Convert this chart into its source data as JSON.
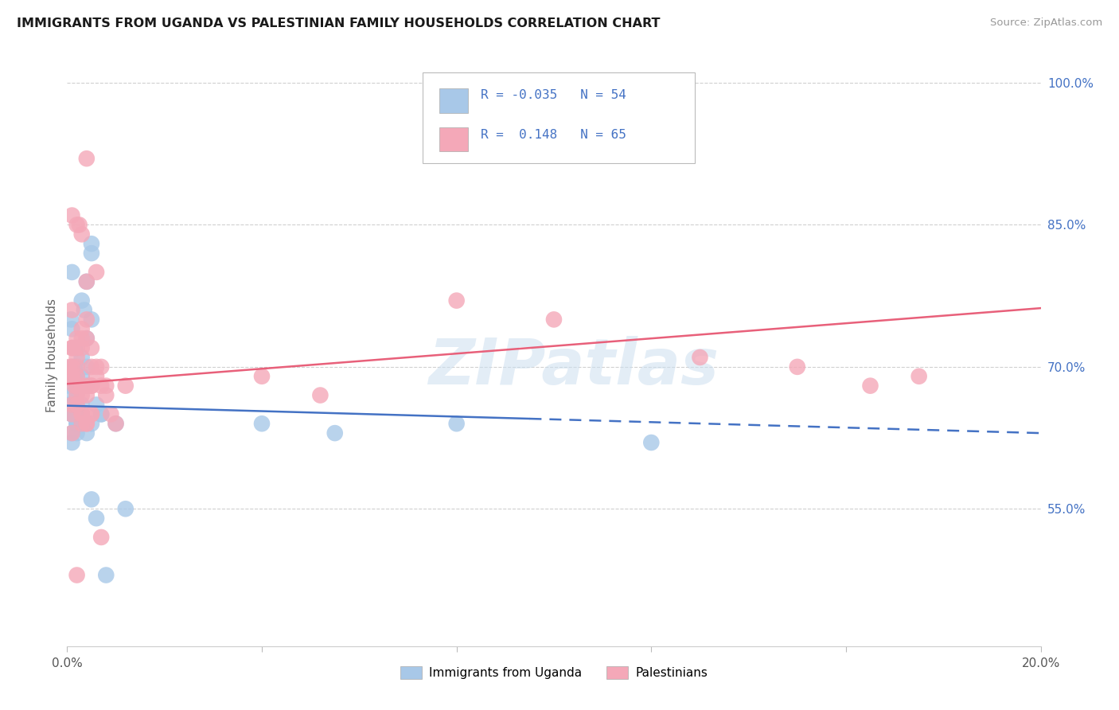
{
  "title": "IMMIGRANTS FROM UGANDA VS PALESTINIAN FAMILY HOUSEHOLDS CORRELATION CHART",
  "source": "Source: ZipAtlas.com",
  "ylabel": "Family Households",
  "ylabel_right_labels": [
    "55.0%",
    "70.0%",
    "85.0%",
    "100.0%"
  ],
  "ylabel_right_values": [
    0.55,
    0.7,
    0.85,
    1.0
  ],
  "xmin": 0.0,
  "xmax": 0.2,
  "ymin": 0.405,
  "ymax": 1.02,
  "legend1_R": "-0.035",
  "legend1_N": "54",
  "legend2_R": "0.148",
  "legend2_N": "65",
  "legend1_label": "Immigrants from Uganda",
  "legend2_label": "Palestinians",
  "blue_dot_color": "#a8c8e8",
  "pink_dot_color": "#f4a8b8",
  "blue_line_color": "#4472c4",
  "pink_line_color": "#e8607a",
  "right_axis_color": "#4472c4",
  "grid_color": "#d0d0d0",
  "uganda_x": [
    0.0005,
    0.0008,
    0.001,
    0.0015,
    0.002,
    0.0025,
    0.003,
    0.0035,
    0.004,
    0.005,
    0.001,
    0.0015,
    0.002,
    0.003,
    0.004,
    0.005,
    0.006,
    0.007,
    0.001,
    0.002,
    0.003,
    0.004,
    0.001,
    0.002,
    0.003,
    0.001,
    0.002,
    0.003,
    0.004,
    0.005,
    0.001,
    0.002,
    0.001,
    0.002,
    0.003,
    0.001,
    0.002,
    0.001,
    0.0005,
    0.001,
    0.002,
    0.003,
    0.004,
    0.005,
    0.006,
    0.007,
    0.008,
    0.01,
    0.012,
    0.005,
    0.04,
    0.055,
    0.08,
    0.12
  ],
  "uganda_y": [
    0.68,
    0.75,
    0.8,
    0.7,
    0.72,
    0.68,
    0.77,
    0.76,
    0.68,
    0.82,
    0.74,
    0.72,
    0.69,
    0.71,
    0.79,
    0.75,
    0.66,
    0.65,
    0.65,
    0.67,
    0.65,
    0.73,
    0.7,
    0.66,
    0.64,
    0.69,
    0.68,
    0.69,
    0.7,
    0.64,
    0.65,
    0.63,
    0.67,
    0.64,
    0.66,
    0.63,
    0.64,
    0.62,
    0.66,
    0.65,
    0.64,
    0.65,
    0.63,
    0.56,
    0.54,
    0.65,
    0.48,
    0.64,
    0.55,
    0.83,
    0.64,
    0.63,
    0.64,
    0.62
  ],
  "palestinian_x": [
    0.0005,
    0.001,
    0.0015,
    0.002,
    0.0025,
    0.003,
    0.004,
    0.005,
    0.001,
    0.002,
    0.003,
    0.004,
    0.005,
    0.001,
    0.002,
    0.003,
    0.004,
    0.001,
    0.002,
    0.003,
    0.001,
    0.002,
    0.003,
    0.004,
    0.001,
    0.002,
    0.003,
    0.004,
    0.005,
    0.006,
    0.001,
    0.002,
    0.003,
    0.001,
    0.002,
    0.001,
    0.003,
    0.004,
    0.005,
    0.006,
    0.007,
    0.008,
    0.001,
    0.002,
    0.003,
    0.004,
    0.005,
    0.006,
    0.007,
    0.008,
    0.009,
    0.01,
    0.012,
    0.004,
    0.08,
    0.1,
    0.13,
    0.15,
    0.165,
    0.175,
    0.002,
    0.005,
    0.007,
    0.04,
    0.052
  ],
  "palestinian_y": [
    0.7,
    0.72,
    0.68,
    0.73,
    0.85,
    0.84,
    0.75,
    0.7,
    0.66,
    0.67,
    0.65,
    0.68,
    0.72,
    0.86,
    0.85,
    0.73,
    0.79,
    0.7,
    0.72,
    0.74,
    0.69,
    0.68,
    0.64,
    0.73,
    0.76,
    0.71,
    0.65,
    0.67,
    0.68,
    0.8,
    0.69,
    0.7,
    0.72,
    0.65,
    0.66,
    0.63,
    0.68,
    0.64,
    0.65,
    0.69,
    0.7,
    0.68,
    0.72,
    0.69,
    0.67,
    0.64,
    0.65,
    0.7,
    0.68,
    0.67,
    0.65,
    0.64,
    0.68,
    0.92,
    0.77,
    0.75,
    0.71,
    0.7,
    0.68,
    0.69,
    0.48,
    0.68,
    0.52,
    0.69,
    0.67
  ]
}
